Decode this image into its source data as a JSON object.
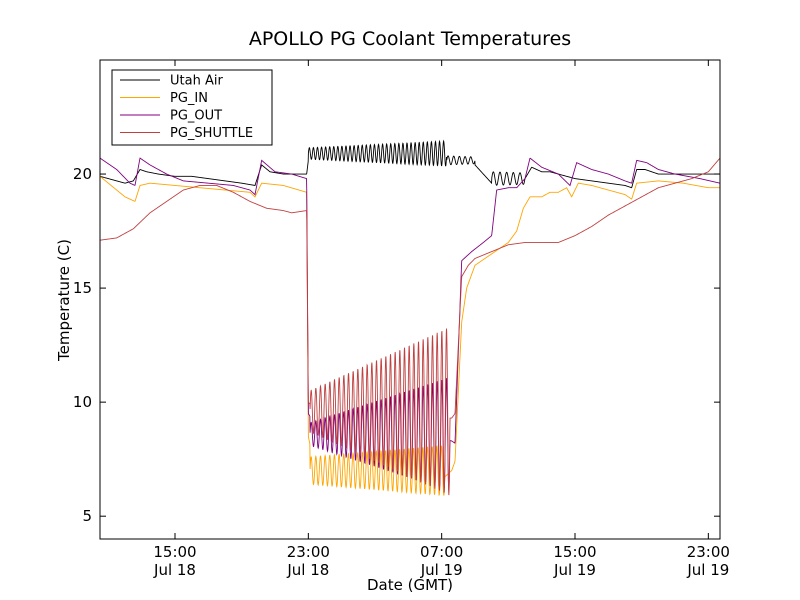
{
  "chart_data": {
    "type": "line",
    "title": "APOLLO PG Coolant Temperatures",
    "xlabel": "Date (GMT)",
    "ylabel": "Temperature (C)",
    "x_unit": "hours since Jul 18 00:00 GMT",
    "xlim": [
      10.5,
      47.7
    ],
    "ylim": [
      4,
      25
    ],
    "x_ticks": [
      {
        "value": 15,
        "label_time": "15:00",
        "label_date": "Jul 18"
      },
      {
        "value": 23,
        "label_time": "23:00",
        "label_date": "Jul 18"
      },
      {
        "value": 31,
        "label_time": "07:00",
        "label_date": "Jul 19"
      },
      {
        "value": 39,
        "label_time": "15:00",
        "label_date": "Jul 19"
      },
      {
        "value": 47,
        "label_time": "23:00",
        "label_date": "Jul 19"
      }
    ],
    "y_ticks": [
      {
        "value": 5,
        "label": "5"
      },
      {
        "value": 10,
        "label": "10"
      },
      {
        "value": 15,
        "label": "15"
      },
      {
        "value": 20,
        "label": "20"
      }
    ],
    "legend_position": "top-left",
    "series": [
      {
        "name": "Utah Air",
        "color": "#000000",
        "points": [
          [
            10.5,
            19.9
          ],
          [
            12.0,
            19.6
          ],
          [
            12.5,
            19.7
          ],
          [
            12.9,
            20.2
          ],
          [
            13.3,
            20.1
          ],
          [
            14.0,
            20.0
          ],
          [
            15.0,
            19.9
          ],
          [
            16.0,
            19.9
          ],
          [
            17.0,
            19.8
          ],
          [
            18.0,
            19.7
          ],
          [
            19.0,
            19.6
          ],
          [
            19.8,
            19.5
          ],
          [
            20.2,
            20.4
          ],
          [
            20.7,
            20.1
          ],
          [
            21.5,
            20.0
          ],
          [
            22.5,
            20.0
          ],
          [
            22.9,
            20.0
          ],
          [
            23.0,
            20.6
          ],
          [
            23.3,
            20.8
          ],
          [
            24.0,
            20.8
          ],
          [
            25.0,
            20.9
          ],
          [
            26.0,
            21.0
          ],
          [
            27.0,
            21.0
          ],
          [
            28.0,
            21.2
          ],
          [
            29.0,
            21.1
          ],
          [
            29.5,
            21.4
          ],
          [
            30.0,
            21.2
          ],
          [
            30.8,
            21.1
          ],
          [
            31.5,
            20.7
          ],
          [
            32.0,
            20.6
          ],
          [
            32.6,
            20.5
          ],
          [
            33.0,
            20.4
          ],
          [
            33.5,
            20.0
          ],
          [
            34.0,
            19.6
          ],
          [
            34.5,
            19.5
          ],
          [
            35.0,
            19.6
          ],
          [
            35.5,
            19.8
          ],
          [
            36.0,
            19.8
          ],
          [
            36.4,
            20.3
          ],
          [
            37.0,
            20.1
          ],
          [
            37.5,
            20.1
          ],
          [
            38.0,
            20.0
          ],
          [
            39.0,
            19.8
          ],
          [
            40.0,
            19.7
          ],
          [
            41.0,
            19.6
          ],
          [
            42.0,
            19.5
          ],
          [
            42.4,
            19.4
          ],
          [
            42.7,
            20.2
          ],
          [
            43.2,
            20.2
          ],
          [
            44.0,
            20.0
          ],
          [
            45.0,
            20.0
          ],
          [
            46.0,
            20.0
          ],
          [
            47.0,
            20.0
          ],
          [
            47.7,
            20.0
          ]
        ],
        "oscillations": [
          {
            "start": 23.0,
            "end": 31.3,
            "cycles": 34,
            "mid": 20.9,
            "amp": 0.25,
            "amp_end": 0.55
          },
          {
            "start": 31.3,
            "end": 33.0,
            "cycles": 5,
            "mid": 20.6,
            "amp": 0.2,
            "amp_end": 0.15
          },
          {
            "start": 34.0,
            "end": 36.0,
            "cycles": 5,
            "mid": 19.8,
            "amp": 0.3,
            "amp_end": 0.25
          }
        ]
      },
      {
        "name": "PG_IN",
        "color": "#ffa500",
        "points": [
          [
            10.5,
            19.9
          ],
          [
            12.0,
            19.0
          ],
          [
            12.6,
            18.8
          ],
          [
            12.9,
            19.5
          ],
          [
            13.5,
            19.6
          ],
          [
            15.0,
            19.5
          ],
          [
            16.5,
            19.4
          ],
          [
            18.0,
            19.3
          ],
          [
            19.5,
            19.2
          ],
          [
            19.8,
            19.0
          ],
          [
            20.2,
            19.6
          ],
          [
            21.5,
            19.5
          ],
          [
            22.9,
            19.2
          ],
          [
            23.0,
            8.5
          ],
          [
            23.3,
            7.4
          ],
          [
            24.0,
            7.3
          ],
          [
            25.5,
            7.2
          ],
          [
            26.5,
            6.4
          ],
          [
            28.0,
            6.3
          ],
          [
            29.0,
            6.3
          ],
          [
            30.0,
            6.2
          ],
          [
            31.0,
            6.6
          ],
          [
            31.6,
            7.0
          ],
          [
            31.8,
            7.4
          ],
          [
            32.2,
            13.5
          ],
          [
            32.5,
            15.0
          ],
          [
            33.0,
            16.0
          ],
          [
            34.0,
            16.5
          ],
          [
            35.0,
            17.0
          ],
          [
            35.5,
            17.5
          ],
          [
            35.9,
            18.5
          ],
          [
            36.3,
            19.0
          ],
          [
            37.0,
            19.0
          ],
          [
            37.5,
            19.2
          ],
          [
            38.0,
            19.2
          ],
          [
            38.5,
            19.4
          ],
          [
            38.8,
            19.0
          ],
          [
            39.2,
            19.6
          ],
          [
            40.0,
            19.5
          ],
          [
            41.0,
            19.3
          ],
          [
            42.0,
            19.1
          ],
          [
            42.4,
            18.9
          ],
          [
            42.7,
            19.6
          ],
          [
            44.0,
            19.7
          ],
          [
            45.5,
            19.6
          ],
          [
            47.0,
            19.4
          ],
          [
            47.7,
            19.4
          ]
        ],
        "oscillations": [
          {
            "start": 23.1,
            "end": 31.2,
            "cycles": 29,
            "mid": 7.0,
            "amp": 0.6,
            "amp_end": 1.1
          }
        ]
      },
      {
        "name": "PG_OUT",
        "color": "#800080",
        "points": [
          [
            10.5,
            20.7
          ],
          [
            11.5,
            20.2
          ],
          [
            12.3,
            19.6
          ],
          [
            12.6,
            19.5
          ],
          [
            12.9,
            20.7
          ],
          [
            13.5,
            20.4
          ],
          [
            14.5,
            20.0
          ],
          [
            15.5,
            19.7
          ],
          [
            17.0,
            19.6
          ],
          [
            18.5,
            19.5
          ],
          [
            19.5,
            19.3
          ],
          [
            19.8,
            19.1
          ],
          [
            20.2,
            20.6
          ],
          [
            21.0,
            20.1
          ],
          [
            22.0,
            20.0
          ],
          [
            22.9,
            19.8
          ],
          [
            23.0,
            9.5
          ],
          [
            23.4,
            9.0
          ],
          [
            24.0,
            8.7
          ],
          [
            25.5,
            8.6
          ],
          [
            26.5,
            8.6
          ],
          [
            28.0,
            8.5
          ],
          [
            29.5,
            8.4
          ],
          [
            31.0,
            8.4
          ],
          [
            31.6,
            8.3
          ],
          [
            31.8,
            8.2
          ],
          [
            32.2,
            16.2
          ],
          [
            32.8,
            16.6
          ],
          [
            33.5,
            17.0
          ],
          [
            34.0,
            17.3
          ],
          [
            34.3,
            19.3
          ],
          [
            35.0,
            19.4
          ],
          [
            35.5,
            19.4
          ],
          [
            36.0,
            19.8
          ],
          [
            36.3,
            20.7
          ],
          [
            37.0,
            20.3
          ],
          [
            38.0,
            20.0
          ],
          [
            38.7,
            19.5
          ],
          [
            39.1,
            20.5
          ],
          [
            40.0,
            20.2
          ],
          [
            41.0,
            20.0
          ],
          [
            42.0,
            19.7
          ],
          [
            42.4,
            19.6
          ],
          [
            42.7,
            20.6
          ],
          [
            43.3,
            20.5
          ],
          [
            44.0,
            20.2
          ],
          [
            45.0,
            20.0
          ],
          [
            46.5,
            19.8
          ],
          [
            47.7,
            19.6
          ]
        ],
        "oscillations": [
          {
            "start": 23.1,
            "end": 31.5,
            "cycles": 30,
            "mid": 8.6,
            "amp": 0.5,
            "amp_end": 2.5
          }
        ]
      },
      {
        "name": "PG_SHUTTLE",
        "color": "#c04040",
        "points": [
          [
            10.5,
            17.1
          ],
          [
            11.5,
            17.2
          ],
          [
            12.5,
            17.6
          ],
          [
            13.5,
            18.3
          ],
          [
            14.5,
            18.8
          ],
          [
            15.5,
            19.3
          ],
          [
            16.5,
            19.5
          ],
          [
            17.5,
            19.5
          ],
          [
            18.5,
            19.2
          ],
          [
            19.5,
            18.8
          ],
          [
            20.5,
            18.5
          ],
          [
            21.5,
            18.4
          ],
          [
            22.0,
            18.3
          ],
          [
            22.9,
            18.4
          ],
          [
            23.0,
            10.0
          ],
          [
            23.5,
            9.6
          ],
          [
            24.5,
            9.5
          ],
          [
            25.5,
            9.4
          ],
          [
            26.5,
            9.3
          ],
          [
            28.0,
            9.2
          ],
          [
            29.5,
            9.2
          ],
          [
            31.0,
            9.3
          ],
          [
            31.6,
            9.3
          ],
          [
            31.8,
            9.5
          ],
          [
            32.2,
            15.5
          ],
          [
            32.6,
            16.0
          ],
          [
            33.0,
            16.3
          ],
          [
            34.0,
            16.6
          ],
          [
            35.0,
            16.9
          ],
          [
            36.0,
            17.0
          ],
          [
            37.0,
            17.0
          ],
          [
            38.0,
            17.0
          ],
          [
            39.0,
            17.3
          ],
          [
            40.0,
            17.7
          ],
          [
            41.0,
            18.2
          ],
          [
            42.0,
            18.6
          ],
          [
            43.0,
            19.0
          ],
          [
            44.0,
            19.4
          ],
          [
            45.0,
            19.6
          ],
          [
            46.0,
            19.8
          ],
          [
            47.0,
            20.1
          ],
          [
            47.7,
            20.7
          ]
        ],
        "oscillations": [
          {
            "start": 23.1,
            "end": 31.5,
            "cycles": 30,
            "mid": 9.6,
            "amp": 0.9,
            "amp_end": 3.7
          }
        ]
      }
    ]
  }
}
